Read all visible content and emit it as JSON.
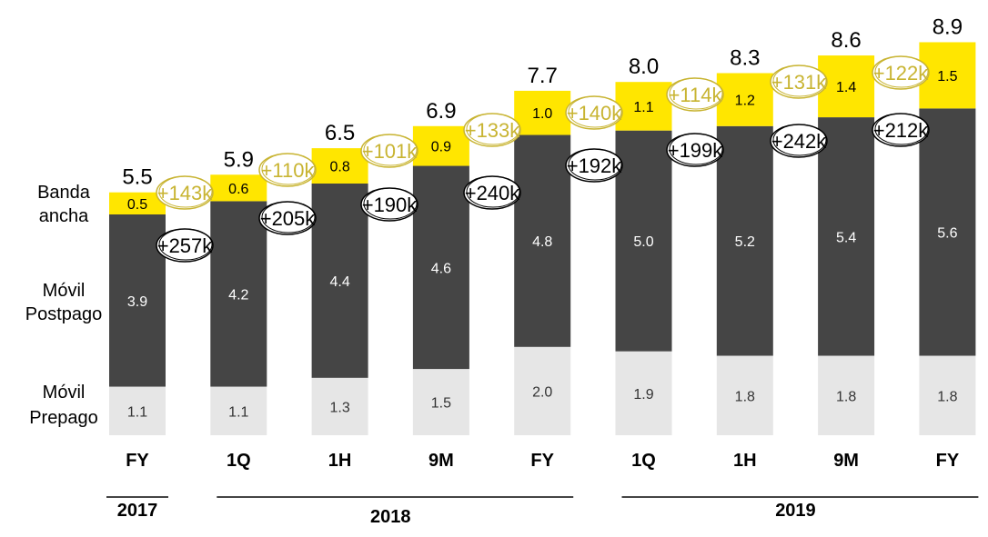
{
  "chart_data": {
    "type": "bar",
    "stacked": true,
    "categories": [
      "FY",
      "1Q",
      "1H",
      "9M",
      "FY",
      "1Q",
      "1H",
      "9M",
      "FY"
    ],
    "year_groups": [
      {
        "label": "2017",
        "span": [
          0,
          0
        ]
      },
      {
        "label": "2018",
        "span": [
          1,
          4
        ]
      },
      {
        "label": "2019",
        "span": [
          5,
          8
        ]
      }
    ],
    "series": [
      {
        "name": "Móvil Prepago",
        "name_lines": [
          "Móvil",
          "Prepago"
        ],
        "color": "#e6e6e6",
        "values": [
          1.1,
          1.1,
          1.3,
          1.5,
          2.0,
          1.9,
          1.8,
          1.8,
          1.8
        ],
        "value_labels": [
          "1.1",
          "1.1",
          "1.3",
          "1.5",
          "2.0",
          "1.9",
          "1.8",
          "1.8",
          "1.8"
        ]
      },
      {
        "name": "Móvil Postpago",
        "name_lines": [
          "Móvil",
          "Postpago"
        ],
        "color": "#454545",
        "values": [
          3.9,
          4.2,
          4.4,
          4.6,
          4.8,
          5.0,
          5.2,
          5.4,
          5.6
        ],
        "value_labels": [
          "3.9",
          "4.2",
          "4.4",
          "4.6",
          "4.8",
          "5.0",
          "5.2",
          "5.4",
          "5.6"
        ]
      },
      {
        "name": "Banda ancha",
        "name_lines": [
          "Banda",
          "ancha"
        ],
        "color": "#ffe600",
        "values": [
          0.5,
          0.6,
          0.8,
          0.9,
          1.0,
          1.1,
          1.2,
          1.4,
          1.5
        ],
        "value_labels": [
          "0.5",
          "0.6",
          "0.8",
          "0.9",
          "1.0",
          "1.1",
          "1.2",
          "1.4",
          "1.5"
        ]
      }
    ],
    "totals": [
      "5.5",
      "5.9",
      "6.5",
      "6.9",
      "7.7",
      "8.0",
      "8.3",
      "8.6",
      "8.9"
    ],
    "annotations": {
      "banda_ancha_net_adds": [
        "+143k",
        "+110k",
        "+101k",
        "+133k",
        "+140k",
        "+114k",
        "+131k",
        "+122k"
      ],
      "postpago_net_adds": [
        "+257k",
        "+205k",
        "+190k",
        "+240k",
        "+192k",
        "+199k",
        "+242k",
        "+212k"
      ],
      "gold_color": "#c8b432",
      "black_color": "#000000"
    },
    "title": "",
    "xlabel": "",
    "ylabel": "",
    "grid": false,
    "legend": "left"
  }
}
